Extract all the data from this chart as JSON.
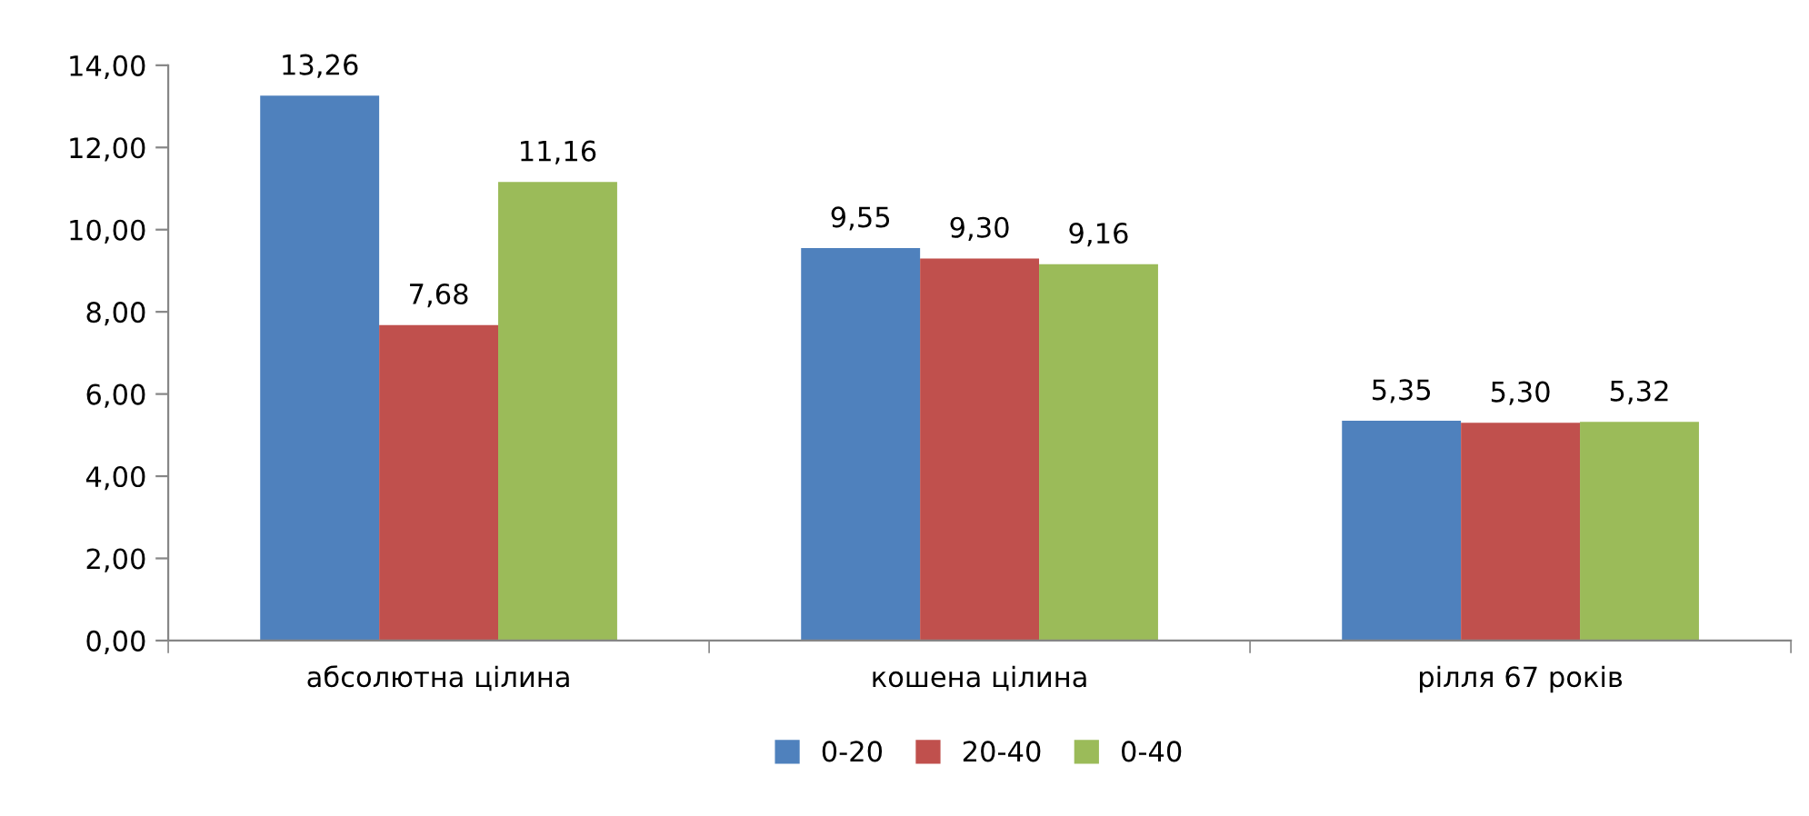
{
  "chart_data": {
    "type": "bar",
    "categories": [
      "абсолютна цілина",
      "кошена цілина",
      "рілля 67 років"
    ],
    "series": [
      {
        "name": "0-20",
        "color": "#4f81bd",
        "values": [
          13.26,
          9.55,
          5.35
        ],
        "value_labels": [
          "13,26",
          "9,55",
          "5,35"
        ]
      },
      {
        "name": "20-40",
        "color": "#c0504d",
        "values": [
          7.68,
          9.3,
          5.3
        ],
        "value_labels": [
          "7,68",
          "9,30",
          "5,30"
        ]
      },
      {
        "name": "0-40",
        "color": "#9bbb59",
        "values": [
          11.16,
          9.16,
          5.32
        ],
        "value_labels": [
          "11,16",
          "9,16",
          "5,32"
        ]
      }
    ],
    "ylim": [
      0,
      14
    ],
    "yticks": [
      {
        "value": 0,
        "label": "0,00"
      },
      {
        "value": 2,
        "label": "2,00"
      },
      {
        "value": 4,
        "label": "4,00"
      },
      {
        "value": 6,
        "label": "6,00"
      },
      {
        "value": 8,
        "label": "8,00"
      },
      {
        "value": 10,
        "label": "10,00"
      },
      {
        "value": 12,
        "label": "12,00"
      },
      {
        "value": 14,
        "label": "14,00"
      }
    ],
    "grid": false,
    "legend": "bottom"
  }
}
